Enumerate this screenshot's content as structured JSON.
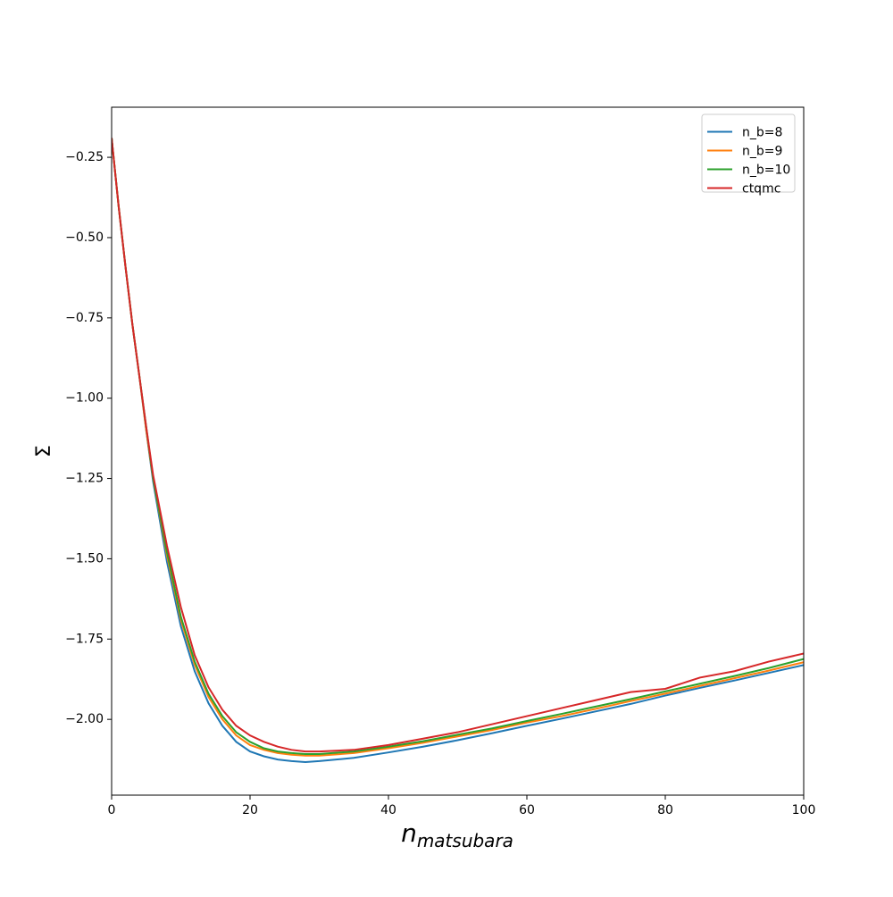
{
  "chart_data": {
    "type": "line",
    "xlabel": {
      "base": "n",
      "subscript": "matsubara"
    },
    "ylabel": "Σ",
    "x": [
      0,
      1,
      2,
      3,
      4,
      5,
      6,
      8,
      10,
      12,
      14,
      16,
      18,
      20,
      22,
      24,
      26,
      28,
      30,
      35,
      40,
      45,
      50,
      55,
      60,
      65,
      70,
      75,
      80,
      85,
      90,
      95,
      100
    ],
    "series": [
      {
        "name": "n_b=8",
        "color": "#1f77b4",
        "values": [
          -0.19,
          -0.4,
          -0.59,
          -0.77,
          -0.93,
          -1.1,
          -1.26,
          -1.51,
          -1.71,
          -1.85,
          -1.95,
          -2.02,
          -2.07,
          -2.1,
          -2.115,
          -2.125,
          -2.13,
          -2.133,
          -2.13,
          -2.12,
          -2.103,
          -2.085,
          -2.065,
          -2.043,
          -2.02,
          -1.998,
          -1.975,
          -1.952,
          -1.926,
          -1.902,
          -1.879,
          -1.855,
          -1.831
        ]
      },
      {
        "name": "n_b=9",
        "color": "#ff7f0e",
        "values": [
          -0.19,
          -0.4,
          -0.59,
          -0.77,
          -0.93,
          -1.1,
          -1.25,
          -1.49,
          -1.69,
          -1.83,
          -1.93,
          -2.0,
          -2.05,
          -2.08,
          -2.095,
          -2.105,
          -2.11,
          -2.113,
          -2.113,
          -2.105,
          -2.09,
          -2.073,
          -2.053,
          -2.033,
          -2.01,
          -1.99,
          -1.967,
          -1.943,
          -1.92,
          -1.896,
          -1.872,
          -1.848,
          -1.822
        ]
      },
      {
        "name": "n_b=10",
        "color": "#2ca02c",
        "values": [
          -0.19,
          -0.4,
          -0.59,
          -0.77,
          -0.93,
          -1.09,
          -1.25,
          -1.48,
          -1.68,
          -1.82,
          -1.92,
          -1.99,
          -2.04,
          -2.07,
          -2.09,
          -2.1,
          -2.105,
          -2.108,
          -2.108,
          -2.1,
          -2.085,
          -2.068,
          -2.048,
          -2.028,
          -2.005,
          -1.983,
          -1.96,
          -1.937,
          -1.913,
          -1.889,
          -1.865,
          -1.84,
          -1.812
        ]
      },
      {
        "name": "ctqmc",
        "color": "#d62728",
        "values": [
          -0.19,
          -0.4,
          -0.59,
          -0.77,
          -0.93,
          -1.09,
          -1.24,
          -1.46,
          -1.65,
          -1.8,
          -1.9,
          -1.97,
          -2.02,
          -2.05,
          -2.07,
          -2.085,
          -2.095,
          -2.1,
          -2.1,
          -2.095,
          -2.08,
          -2.06,
          -2.04,
          -2.015,
          -1.99,
          -1.965,
          -1.94,
          -1.915,
          -1.905,
          -1.87,
          -1.85,
          -1.82,
          -1.795
        ]
      }
    ],
    "xlim": [
      0,
      100
    ],
    "xticks": [
      0,
      20,
      40,
      60,
      80,
      100
    ],
    "ylim": [
      -2.236,
      -0.094
    ],
    "yticks": [
      {
        "value": -0.25,
        "label": "−0.25"
      },
      {
        "value": -0.5,
        "label": "−0.50"
      },
      {
        "value": -0.75,
        "label": "−0.75"
      },
      {
        "value": -1.0,
        "label": "−1.00"
      },
      {
        "value": -1.25,
        "label": "−1.25"
      },
      {
        "value": -1.5,
        "label": "−1.50"
      },
      {
        "value": -1.75,
        "label": "−1.75"
      },
      {
        "value": -2.0,
        "label": "−2.00"
      }
    ],
    "legend": "upper right"
  }
}
